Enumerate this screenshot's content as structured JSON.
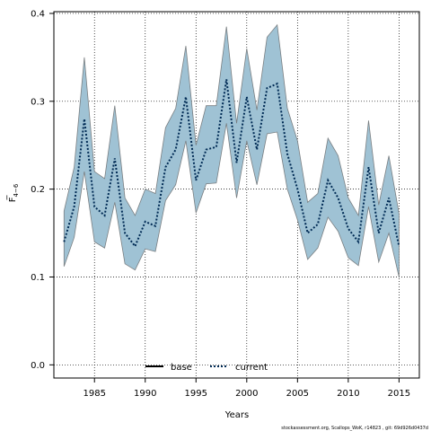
{
  "chart_data": {
    "type": "line",
    "xlabel": "Years",
    "ylabel": "F",
    "ylabel_bar": "‾",
    "ylabel_subscript": "4−6",
    "xlim": [
      1981,
      2017
    ],
    "ylim": [
      -0.015,
      0.402
    ],
    "grid": true,
    "xticks": [
      1985,
      1990,
      1995,
      2000,
      2005,
      2010,
      2015
    ],
    "yticks": [
      0.0,
      0.1,
      0.2,
      0.3,
      0.4
    ],
    "ytick_labels": [
      "0.0",
      "0.1",
      "0.2",
      "0.3",
      "0.4"
    ],
    "legend": {
      "placement": "bottom-center",
      "entries": [
        {
          "label": "base",
          "style": "solid",
          "color": "#000000"
        },
        {
          "label": "current",
          "style": "dotted",
          "color": "#002b55"
        }
      ]
    },
    "colors": {
      "band_fill": "#9fc2d4",
      "band_stroke": "#7a7f82",
      "current_line": "#002b55"
    },
    "x": [
      1982,
      1983,
      1984,
      1985,
      1986,
      1987,
      1988,
      1989,
      1990,
      1991,
      1992,
      1993,
      1994,
      1995,
      1996,
      1997,
      1998,
      1999,
      2000,
      2001,
      2002,
      2003,
      2004,
      2005,
      2006,
      2007,
      2008,
      2009,
      2010,
      2011,
      2012,
      2013,
      2014,
      2015
    ],
    "series": [
      {
        "name": "current",
        "values": [
          0.14,
          0.18,
          0.28,
          0.18,
          0.17,
          0.235,
          0.15,
          0.135,
          0.163,
          0.158,
          0.225,
          0.245,
          0.305,
          0.21,
          0.245,
          0.248,
          0.325,
          0.23,
          0.305,
          0.245,
          0.315,
          0.32,
          0.24,
          0.2,
          0.15,
          0.16,
          0.21,
          0.19,
          0.155,
          0.14,
          0.225,
          0.15,
          0.19,
          0.135
        ],
        "lower": [
          0.112,
          0.145,
          0.22,
          0.14,
          0.133,
          0.185,
          0.115,
          0.108,
          0.132,
          0.129,
          0.187,
          0.205,
          0.255,
          0.173,
          0.206,
          0.207,
          0.275,
          0.19,
          0.255,
          0.205,
          0.263,
          0.265,
          0.2,
          0.165,
          0.12,
          0.133,
          0.168,
          0.152,
          0.122,
          0.113,
          0.18,
          0.117,
          0.15,
          0.1
        ],
        "upper": [
          0.175,
          0.225,
          0.35,
          0.22,
          0.212,
          0.295,
          0.19,
          0.17,
          0.2,
          0.195,
          0.27,
          0.292,
          0.363,
          0.25,
          0.295,
          0.295,
          0.385,
          0.275,
          0.36,
          0.29,
          0.373,
          0.387,
          0.292,
          0.255,
          0.185,
          0.195,
          0.258,
          0.238,
          0.19,
          0.17,
          0.278,
          0.182,
          0.238,
          0.172
        ]
      }
    ]
  },
  "footer": "stockassessment.org, Scallops_WoK, r14823 , git: 69d926d0437d"
}
